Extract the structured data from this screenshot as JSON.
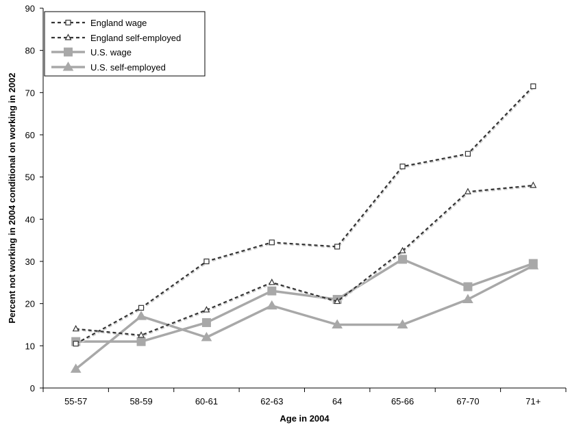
{
  "chart_data": {
    "type": "line",
    "xlabel": "Age in 2004",
    "ylabel": "Percent not working in 2004 conditional on working in 2002",
    "categories": [
      "55-57",
      "58-59",
      "60-61",
      "62-63",
      "64",
      "65-66",
      "67-70",
      "71+"
    ],
    "ylim": [
      0,
      90
    ],
    "yticks": [
      0,
      10,
      20,
      30,
      40,
      50,
      60,
      70,
      80,
      90
    ],
    "grid": false,
    "legend_position": "top-left",
    "series": [
      {
        "name": "England wage",
        "values": [
          10.5,
          19,
          30,
          34.5,
          33.5,
          52.5,
          55.5,
          71.5
        ],
        "style": "dashed",
        "marker": "open-square",
        "color": "#333333"
      },
      {
        "name": "England self-employed",
        "values": [
          14,
          12.5,
          18.5,
          25,
          20.5,
          32.5,
          46.5,
          48
        ],
        "style": "dashed",
        "marker": "open-triangle",
        "color": "#333333"
      },
      {
        "name": "U.S. wage",
        "values": [
          11,
          11,
          15.5,
          23,
          21,
          30.5,
          24,
          29.5
        ],
        "style": "solid",
        "marker": "filled-square",
        "color": "#a8a8a8"
      },
      {
        "name": "U.S. self-employed",
        "values": [
          4.5,
          17,
          12,
          19.5,
          15,
          15,
          21,
          29
        ],
        "style": "solid",
        "marker": "filled-triangle",
        "color": "#a8a8a8"
      }
    ]
  }
}
